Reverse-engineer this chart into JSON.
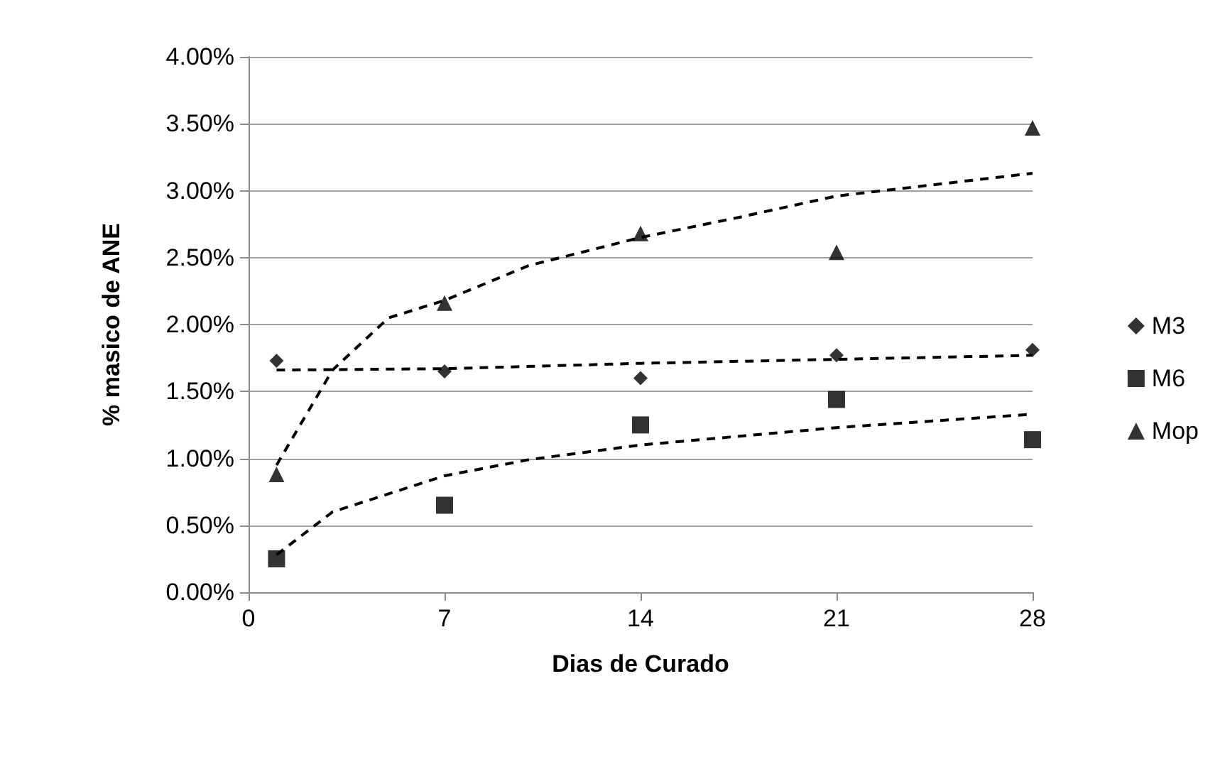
{
  "chart_data": {
    "type": "scatter",
    "xlabel": "Dias de Curado",
    "ylabel": "% masico de ANE",
    "x": [
      1,
      7,
      14,
      21,
      28
    ],
    "series": [
      {
        "name": "M3",
        "color": "#000000",
        "marker": "diamond",
        "values": [
          1.73,
          1.65,
          1.6,
          1.77,
          1.81
        ]
      },
      {
        "name": "M6",
        "color": "#000000",
        "marker": "square",
        "values": [
          0.25,
          0.65,
          1.25,
          1.44,
          1.14
        ]
      },
      {
        "name": "Mop",
        "color": "#000000",
        "marker": "triangle",
        "values": [
          0.88,
          2.16,
          2.68,
          2.54,
          3.47
        ]
      },
      {
        "type": "line",
        "color": "#000000",
        "marker": "none",
        "line_style": "dashed",
        "x": [
          1,
          7,
          14,
          21,
          28
        ],
        "values": [
          1.66,
          1.67,
          1.71,
          1.74,
          1.77
        ]
      },
      {
        "type": "line",
        "color": "#000000",
        "marker": "none",
        "line_style": "dashed",
        "x": [
          1,
          3,
          7,
          10,
          14,
          21,
          28
        ],
        "values": [
          0.28,
          0.6,
          0.87,
          0.99,
          1.1,
          1.23,
          1.33
        ]
      },
      {
        "type": "line",
        "color": "#000000",
        "marker": "none",
        "line_style": "dashed",
        "x": [
          1,
          3,
          5,
          7,
          10,
          14,
          17.5,
          21,
          28
        ],
        "values": [
          0.95,
          1.66,
          2.05,
          2.18,
          2.44,
          2.65,
          2.8,
          2.96,
          3.13
        ]
      }
    ],
    "xlim": [
      0,
      28
    ],
    "xticks": [
      0,
      7,
      14,
      21,
      28
    ],
    "ylim": [
      0,
      4
    ],
    "yticks": [
      {
        "value": 0,
        "label": "0.00%"
      },
      {
        "value": 0.5,
        "label": "0.50%"
      },
      {
        "value": 1,
        "label": "1.00%"
      },
      {
        "value": 1.5,
        "label": "1.50%"
      },
      {
        "value": 2,
        "label": "2.00%"
      },
      {
        "value": 2.5,
        "label": "2.50%"
      },
      {
        "value": 3,
        "label": "3.00%"
      },
      {
        "value": 3.5,
        "label": "3.50%"
      },
      {
        "value": 4,
        "label": "4.00%"
      }
    ],
    "grid": "y",
    "legend": "right"
  }
}
